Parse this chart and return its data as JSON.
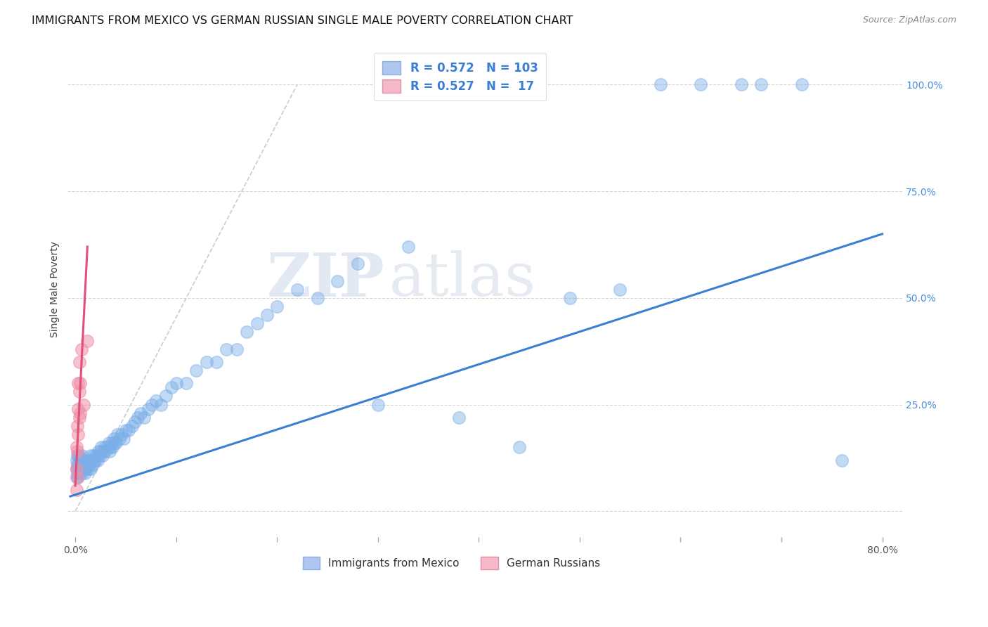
{
  "title": "IMMIGRANTS FROM MEXICO VS GERMAN RUSSIAN SINGLE MALE POVERTY CORRELATION CHART",
  "source": "Source: ZipAtlas.com",
  "ylabel": "Single Male Poverty",
  "legend_label1": "Immigrants from Mexico",
  "legend_label2": "German Russians",
  "blue_color": "#7baee8",
  "pink_color": "#f090a8",
  "blue_line_color": "#3a7fd4",
  "pink_line_color": "#e0507a",
  "watermark_zip": "ZIP",
  "watermark_atlas": "atlas",
  "blue_R": "0.572",
  "blue_N": "103",
  "pink_R": "0.527",
  "pink_N": " 17",
  "blue_points_x": [
    0.001,
    0.001,
    0.001,
    0.002,
    0.002,
    0.002,
    0.003,
    0.003,
    0.003,
    0.003,
    0.004,
    0.004,
    0.004,
    0.005,
    0.005,
    0.005,
    0.006,
    0.006,
    0.007,
    0.007,
    0.007,
    0.008,
    0.008,
    0.009,
    0.009,
    0.01,
    0.01,
    0.011,
    0.011,
    0.012,
    0.013,
    0.013,
    0.014,
    0.015,
    0.015,
    0.016,
    0.017,
    0.018,
    0.019,
    0.02,
    0.021,
    0.022,
    0.023,
    0.024,
    0.025,
    0.026,
    0.027,
    0.028,
    0.029,
    0.03,
    0.032,
    0.033,
    0.034,
    0.035,
    0.036,
    0.037,
    0.038,
    0.039,
    0.04,
    0.042,
    0.044,
    0.046,
    0.048,
    0.05,
    0.053,
    0.056,
    0.059,
    0.062,
    0.065,
    0.068,
    0.072,
    0.076,
    0.08,
    0.085,
    0.09,
    0.095,
    0.1,
    0.11,
    0.12,
    0.13,
    0.14,
    0.15,
    0.16,
    0.17,
    0.18,
    0.19,
    0.2,
    0.22,
    0.24,
    0.26,
    0.28,
    0.3,
    0.33,
    0.38,
    0.44,
    0.49,
    0.54,
    0.58,
    0.62,
    0.66,
    0.68,
    0.72,
    0.76
  ],
  "blue_points_y": [
    0.08,
    0.1,
    0.12,
    0.09,
    0.11,
    0.13,
    0.08,
    0.1,
    0.11,
    0.13,
    0.09,
    0.11,
    0.13,
    0.09,
    0.11,
    0.12,
    0.1,
    0.12,
    0.09,
    0.11,
    0.13,
    0.1,
    0.12,
    0.1,
    0.12,
    0.09,
    0.11,
    0.1,
    0.12,
    0.11,
    0.1,
    0.12,
    0.11,
    0.1,
    0.13,
    0.12,
    0.11,
    0.13,
    0.12,
    0.12,
    0.13,
    0.12,
    0.14,
    0.13,
    0.14,
    0.15,
    0.13,
    0.14,
    0.15,
    0.14,
    0.15,
    0.16,
    0.14,
    0.15,
    0.16,
    0.15,
    0.17,
    0.16,
    0.16,
    0.18,
    0.17,
    0.18,
    0.17,
    0.19,
    0.19,
    0.2,
    0.21,
    0.22,
    0.23,
    0.22,
    0.24,
    0.25,
    0.26,
    0.25,
    0.27,
    0.29,
    0.3,
    0.3,
    0.33,
    0.35,
    0.35,
    0.38,
    0.38,
    0.42,
    0.44,
    0.46,
    0.48,
    0.52,
    0.5,
    0.54,
    0.58,
    0.25,
    0.62,
    0.22,
    0.15,
    0.5,
    0.52,
    1.0,
    1.0,
    1.0,
    1.0,
    1.0,
    0.12
  ],
  "pink_points_x": [
    0.001,
    0.001,
    0.001,
    0.002,
    0.002,
    0.002,
    0.003,
    0.003,
    0.003,
    0.004,
    0.004,
    0.004,
    0.005,
    0.005,
    0.006,
    0.008,
    0.012
  ],
  "pink_points_y": [
    0.05,
    0.1,
    0.15,
    0.08,
    0.14,
    0.2,
    0.18,
    0.24,
    0.3,
    0.22,
    0.28,
    0.35,
    0.23,
    0.3,
    0.38,
    0.25,
    0.4
  ],
  "blue_line_x": [
    -0.005,
    0.8
  ],
  "blue_line_y": [
    0.035,
    0.65
  ],
  "pink_line_x": [
    0.0,
    0.012
  ],
  "pink_line_y": [
    0.06,
    0.62
  ],
  "dashed_line_x": [
    0.0,
    0.22
  ],
  "dashed_line_y": [
    0.0,
    1.0
  ],
  "background_color": "#ffffff",
  "grid_color": "#cccccc",
  "xlim": [
    -0.008,
    0.82
  ],
  "ylim": [
    -0.06,
    1.1
  ]
}
